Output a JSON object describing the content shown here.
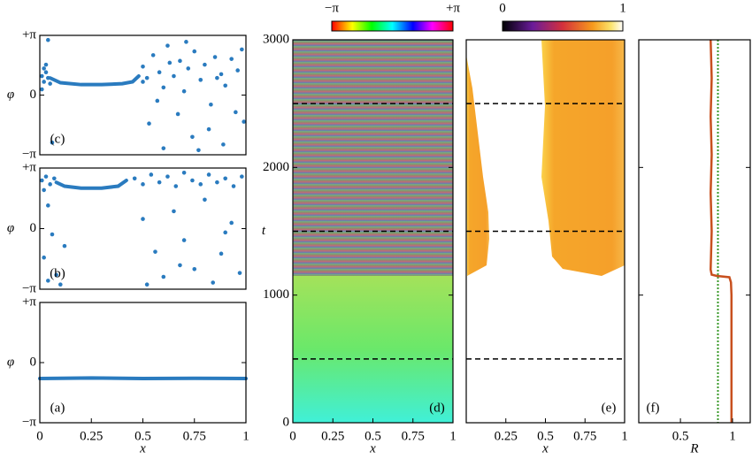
{
  "chart_data": [
    {
      "type": "scatter",
      "label": "(c)",
      "ylabel": "φ",
      "color": "#2a7bbf",
      "xlim": [
        0,
        1
      ],
      "ylim": [
        -3.1416,
        3.1416
      ],
      "yticks": [
        {
          "value": -3.1416,
          "label": "−π"
        },
        0,
        {
          "value": 3.1416,
          "label": "+π"
        }
      ],
      "curve": {
        "x": [
          0.05,
          0.1,
          0.2,
          0.3,
          0.4,
          0.45,
          0.48
        ],
        "y": [
          0.9,
          0.65,
          0.55,
          0.55,
          0.6,
          0.7,
          1.0
        ]
      },
      "x": [
        0.01,
        0.02,
        0.03,
        0.04,
        0.02,
        0.05,
        0.01,
        0.04,
        0.06,
        0.03,
        0.5,
        0.52,
        0.55,
        0.58,
        0.6,
        0.62,
        0.65,
        0.68,
        0.7,
        0.72,
        0.75,
        0.78,
        0.8,
        0.83,
        0.85,
        0.88,
        0.9,
        0.93,
        0.96,
        0.98,
        0.53,
        0.6,
        0.67,
        0.74,
        0.82,
        0.89,
        0.95,
        0.57,
        0.77,
        0.99,
        0.5,
        0.63,
        0.86,
        0.71
      ],
      "y": [
        1.0,
        0.7,
        1.2,
        0.9,
        1.4,
        0.6,
        0.3,
        2.9,
        -2.5,
        1.6,
        1.5,
        0.9,
        2.1,
        1.2,
        0.4,
        2.6,
        1.0,
        1.8,
        0.2,
        1.4,
        2.3,
        0.8,
        1.6,
        -0.5,
        2.0,
        1.1,
        0.5,
        1.9,
        1.3,
        2.4,
        -1.5,
        -2.8,
        -1.0,
        -2.2,
        -1.8,
        -2.6,
        -0.9,
        -0.3,
        -2.9,
        -1.4,
        0.7,
        1.7,
        0.9,
        2.8
      ]
    },
    {
      "type": "scatter",
      "label": "(b)",
      "ylabel": "φ",
      "color": "#2a7bbf",
      "xlim": [
        0,
        1
      ],
      "ylim": [
        -3.1416,
        3.1416
      ],
      "yticks": [
        {
          "value": -3.1416,
          "label": "−π"
        },
        0,
        {
          "value": 3.1416,
          "label": "+π"
        }
      ],
      "curve": {
        "x": [
          0.08,
          0.12,
          0.2,
          0.3,
          0.38,
          0.42
        ],
        "y": [
          2.4,
          2.2,
          2.1,
          2.1,
          2.2,
          2.5
        ]
      },
      "x": [
        0.01,
        0.03,
        0.05,
        0.07,
        0.02,
        0.04,
        0.06,
        0.02,
        0.08,
        0.1,
        0.04,
        0.12,
        0.46,
        0.5,
        0.54,
        0.58,
        0.62,
        0.66,
        0.7,
        0.74,
        0.78,
        0.82,
        0.86,
        0.9,
        0.94,
        0.98,
        0.5,
        0.56,
        0.6,
        0.65,
        0.7,
        0.75,
        0.8,
        0.84,
        0.88,
        0.93,
        0.97,
        0.52,
        0.68,
        0.9
      ],
      "y": [
        2.5,
        2.7,
        2.3,
        2.6,
        2.0,
        1.2,
        -0.3,
        -1.5,
        -2.4,
        -2.9,
        -2.7,
        -0.9,
        2.6,
        2.3,
        2.8,
        2.4,
        2.7,
        2.2,
        2.9,
        2.5,
        2.3,
        2.8,
        2.4,
        2.6,
        2.2,
        2.7,
        0.5,
        -1.2,
        -2.5,
        0.9,
        -0.6,
        -2.1,
        1.5,
        -2.8,
        -1.3,
        0.3,
        -2.3,
        -2.9,
        -1.9,
        -0.2
      ]
    },
    {
      "type": "scatter",
      "label": "(a)",
      "ylabel": "φ",
      "xlabel": "x",
      "color": "#2a7bbf",
      "xlim": [
        0,
        1
      ],
      "ylim": [
        -3.1416,
        3.1416
      ],
      "xticks": [
        0,
        0.25,
        0.5,
        0.75,
        1
      ],
      "yticks": [
        {
          "value": -3.1416,
          "label": "−π"
        },
        0,
        {
          "value": 3.1416,
          "label": "+π"
        }
      ],
      "curve": {
        "x": [
          0,
          0.25,
          0.5,
          0.75,
          1
        ],
        "y": [
          -0.83,
          -0.8,
          -0.83,
          -0.82,
          -0.83
        ]
      },
      "x": [],
      "y": []
    },
    {
      "type": "heatmap",
      "label": "(d)",
      "xlabel": "x",
      "ylabel": "t",
      "xlim": [
        0,
        1
      ],
      "ylim": [
        0,
        3000
      ],
      "xticks": [
        0,
        0.25,
        0.5,
        0.75,
        1
      ],
      "yticks": [
        0,
        1000,
        2000,
        3000
      ],
      "colorbar": [
        {
          "value": -3.1416,
          "label": "−π"
        },
        {
          "value": 3.1416,
          "label": "+π"
        }
      ],
      "dashed_lines": [
        500,
        1500,
        2500
      ]
    },
    {
      "type": "heatmap",
      "label": "(e)",
      "xlabel": "x",
      "xlim": [
        0,
        1
      ],
      "ylim": [
        0,
        3000
      ],
      "xticks": [
        0.25,
        0.5,
        0.75,
        1
      ],
      "colorbar": [
        0,
        1
      ],
      "dashed_lines": [
        500,
        1500,
        2500
      ]
    },
    {
      "type": "line",
      "label": "(f)",
      "xlabel": "R",
      "color": "#c8501e",
      "xlim": [
        0.1,
        1.17
      ],
      "ylim": [
        0,
        3000
      ],
      "xticks": [
        0.5,
        1
      ],
      "yticks": [
        0,
        1000,
        2000,
        3000
      ],
      "x": [
        0.99,
        0.99,
        0.99,
        0.985,
        0.97,
        0.85,
        0.8,
        0.79,
        0.8,
        0.79,
        0.8,
        0.79,
        0.8,
        0.79
      ],
      "y": [
        0,
        500,
        1000,
        1100,
        1140,
        1150,
        1160,
        1200,
        1500,
        1800,
        2100,
        2400,
        2700,
        3000
      ],
      "reference": 0.86,
      "reference_color": "#3a9a2a"
    }
  ]
}
